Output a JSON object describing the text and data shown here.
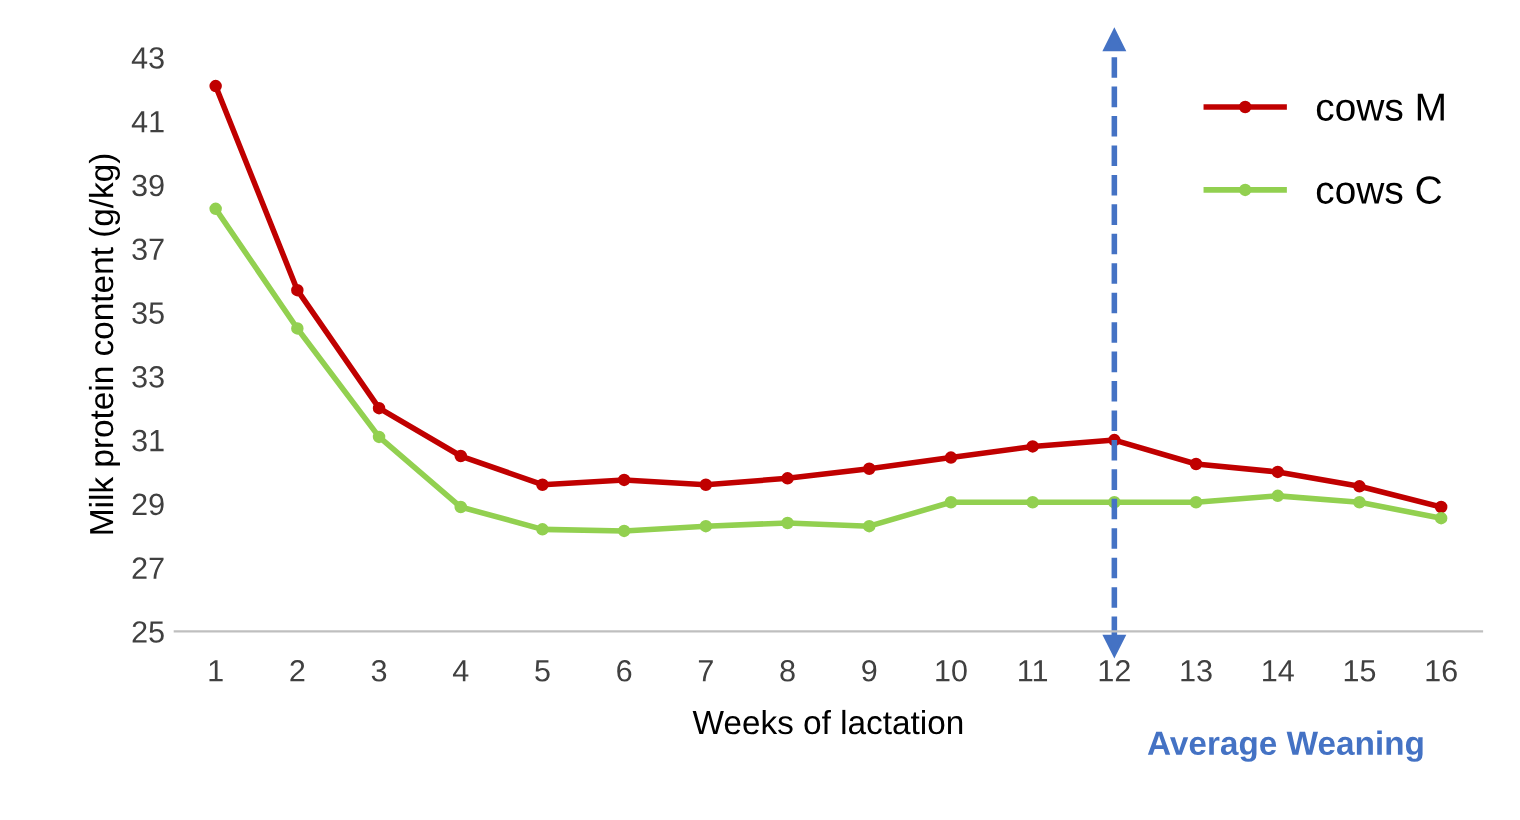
{
  "chart_data": {
    "type": "line",
    "xlabel": "Weeks of lactation",
    "ylabel": "Milk protein content (g/kg)",
    "x": [
      1,
      2,
      3,
      4,
      5,
      6,
      7,
      8,
      9,
      10,
      11,
      12,
      13,
      14,
      15,
      16
    ],
    "series": [
      {
        "name": "cows M",
        "color": "#c00000",
        "values": [
          42.1,
          35.7,
          32.0,
          30.5,
          29.6,
          29.75,
          29.6,
          29.8,
          30.1,
          30.45,
          30.8,
          31.0,
          30.25,
          30.0,
          29.55,
          28.9
        ]
      },
      {
        "name": "cows C",
        "color": "#92d050",
        "values": [
          38.25,
          34.5,
          31.1,
          28.9,
          28.2,
          28.15,
          28.3,
          28.4,
          28.3,
          29.05,
          29.05,
          29.05,
          29.05,
          29.25,
          29.05,
          28.55
        ]
      }
    ],
    "xlim": [
      0.5,
      16.5
    ],
    "xticks": [
      1,
      2,
      3,
      4,
      5,
      6,
      7,
      8,
      9,
      10,
      11,
      12,
      13,
      14,
      15,
      16
    ],
    "ylim": [
      25,
      43
    ],
    "yticks": [
      25,
      27,
      29,
      31,
      33,
      35,
      37,
      39,
      41,
      43
    ],
    "ref_lines": [
      {
        "axis": "x",
        "value": 12,
        "label": "Average Weaning",
        "color": "#4472c4",
        "line_style": "dashed"
      }
    ],
    "grid": false,
    "legend": "top right",
    "marker": "circle",
    "line_style": "solid"
  }
}
